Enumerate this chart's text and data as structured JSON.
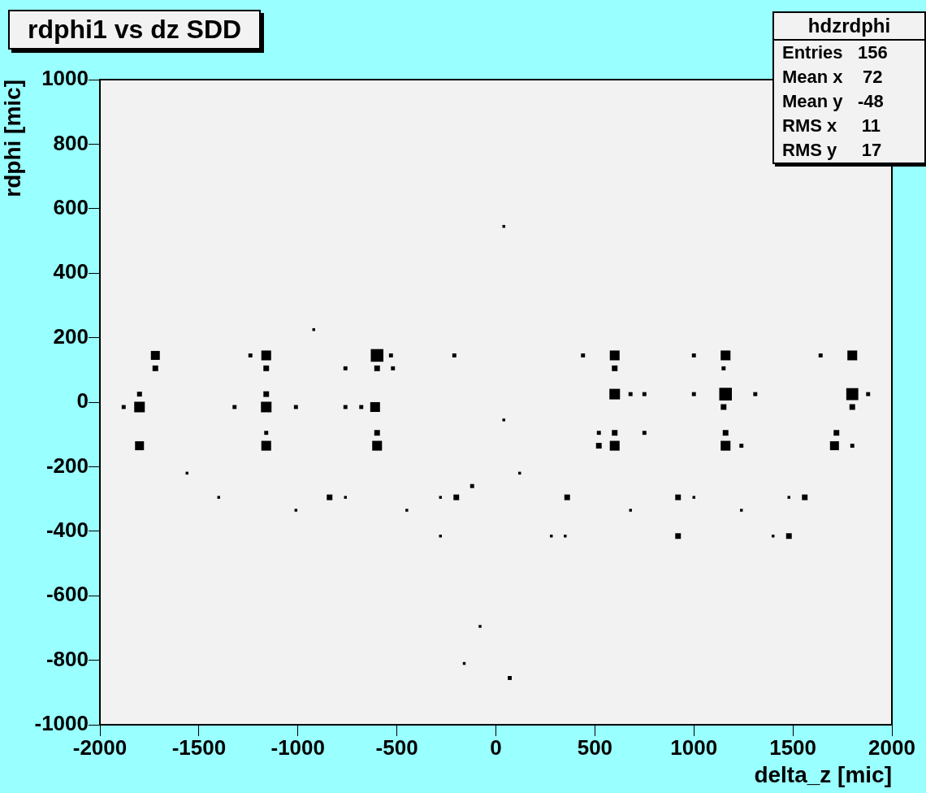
{
  "chart_data": {
    "type": "bubble",
    "title": "rdphi1 vs dz SDD",
    "xlabel": "delta_z [mic]",
    "ylabel": "rdphi [mic]",
    "xlim": [
      -2000,
      2000
    ],
    "xticks": [
      -2000,
      -1500,
      -1000,
      -500,
      0,
      500,
      1000,
      1500,
      2000
    ],
    "ylim": [
      -1000,
      1000
    ],
    "yticks": [
      -1000,
      -800,
      -600,
      -400,
      -200,
      0,
      200,
      400,
      600,
      800,
      1000
    ],
    "grid": false,
    "legend": false,
    "marker": "square",
    "annotations": [
      "hdzrdphi",
      "Entries   156",
      "Mean x    72",
      "Mean y   -48",
      "RMS x     11",
      "RMS y     17"
    ],
    "series": [
      {
        "color": "#000000",
        "x": [
          -920,
          -1720,
          -1240,
          -1160,
          -600,
          -530,
          -210,
          -1720,
          -1160,
          -760,
          -600,
          -520,
          -1800,
          -1160,
          -1880,
          -1800,
          -1320,
          -1160,
          -1010,
          -760,
          -680,
          -610,
          40,
          -1160,
          -600,
          -1800,
          -1160,
          -600,
          -1560,
          -120,
          -1400,
          -840,
          -760,
          -280,
          -200,
          -1010,
          -450,
          -280,
          440,
          600,
          1000,
          1160,
          1640,
          1800,
          600,
          1150,
          600,
          680,
          750,
          1000,
          1160,
          1310,
          1800,
          1880,
          1150,
          1800,
          520,
          600,
          750,
          1160,
          1720,
          520,
          600,
          1160,
          1240,
          1710,
          1800,
          120,
          360,
          920,
          1000,
          1480,
          1560,
          680,
          1240,
          280,
          350,
          920,
          1400,
          1480,
          40,
          -80,
          -160,
          70
        ],
        "values": [
          225,
          145,
          145,
          145,
          145,
          145,
          145,
          105,
          105,
          105,
          105,
          105,
          25,
          25,
          -15,
          -15,
          -15,
          -15,
          -15,
          -15,
          -15,
          -15,
          -55,
          -95,
          -95,
          -135,
          -135,
          -135,
          -220,
          -260,
          -295,
          -295,
          -295,
          -295,
          -295,
          -335,
          -335,
          -415,
          145,
          145,
          145,
          145,
          145,
          145,
          105,
          105,
          25,
          25,
          25,
          25,
          25,
          25,
          25,
          25,
          -15,
          -15,
          -95,
          -95,
          -95,
          -95,
          -95,
          -135,
          -135,
          -135,
          -135,
          -135,
          -135,
          -220,
          -295,
          -295,
          -295,
          -295,
          -295,
          -335,
          -335,
          -415,
          -415,
          -415,
          -415,
          -415,
          545,
          -695,
          -810,
          -855
        ],
        "sizes": [
          0.05,
          0.5,
          0.1,
          0.6,
          1,
          0.1,
          0.1,
          0.2,
          0.2,
          0.1,
          0.2,
          0.1,
          0.15,
          0.2,
          0.1,
          0.7,
          0.1,
          0.7,
          0.1,
          0.1,
          0.1,
          0.6,
          0.05,
          0.1,
          0.2,
          0.5,
          0.6,
          0.6,
          0.05,
          0.1,
          0.05,
          0.2,
          0.05,
          0.05,
          0.2,
          0.05,
          0.05,
          0.05,
          0.1,
          0.6,
          0.1,
          0.6,
          0.1,
          0.6,
          0.2,
          0.1,
          0.7,
          0.1,
          0.1,
          0.1,
          1,
          0.1,
          0.9,
          0.1,
          0.2,
          0.2,
          0.1,
          0.2,
          0.1,
          0.2,
          0.2,
          0.2,
          0.6,
          0.6,
          0.1,
          0.5,
          0.1,
          0.05,
          0.2,
          0.2,
          0.05,
          0.05,
          0.2,
          0.05,
          0.05,
          0.05,
          0.05,
          0.2,
          0.05,
          0.2,
          0.05,
          0.05,
          0.05,
          0.1
        ]
      }
    ]
  }
}
